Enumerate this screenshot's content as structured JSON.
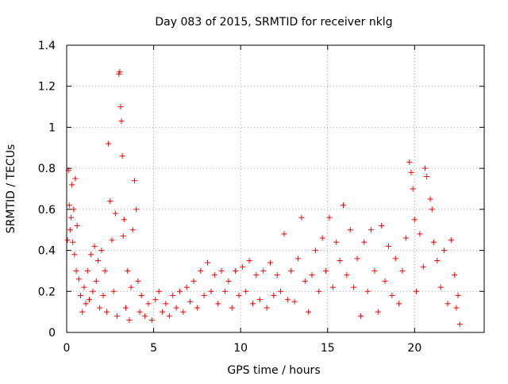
{
  "chart_data": {
    "type": "scatter",
    "title": "Day 083 of 2015, SRMTID for receiver nklg",
    "xlabel": "GPS time / hours",
    "ylabel": "SRMTID / TECUs",
    "xlim": [
      0,
      24
    ],
    "ylim": [
      0,
      1.4
    ],
    "xticks": [
      0,
      5,
      10,
      15,
      20
    ],
    "xtick_labels": [
      "0",
      "5",
      "10",
      "15",
      "20"
    ],
    "yticks": [
      0,
      0.2,
      0.4,
      0.6,
      0.8,
      1.0,
      1.2,
      1.4
    ],
    "ytick_labels": [
      "0",
      "0.2",
      "0.4",
      "0.6",
      "0.8",
      "1",
      "1.2",
      "1.4"
    ],
    "grid": true,
    "marker": "+",
    "color": "#ff0000",
    "series": [
      {
        "name": "SRMTID",
        "points": [
          [
            0.05,
            0.45
          ],
          [
            0.1,
            0.79
          ],
          [
            0.15,
            0.62
          ],
          [
            0.2,
            0.5
          ],
          [
            0.25,
            0.56
          ],
          [
            0.3,
            0.72
          ],
          [
            0.35,
            0.44
          ],
          [
            0.4,
            0.6
          ],
          [
            0.45,
            0.38
          ],
          [
            0.5,
            0.75
          ],
          [
            0.55,
            0.3
          ],
          [
            0.6,
            0.52
          ],
          [
            0.7,
            0.26
          ],
          [
            0.8,
            0.18
          ],
          [
            0.9,
            0.1
          ],
          [
            1.0,
            0.22
          ],
          [
            1.1,
            0.14
          ],
          [
            1.2,
            0.3
          ],
          [
            1.3,
            0.16
          ],
          [
            1.4,
            0.38
          ],
          [
            1.5,
            0.2
          ],
          [
            1.6,
            0.42
          ],
          [
            1.7,
            0.25
          ],
          [
            1.8,
            0.35
          ],
          [
            1.9,
            0.12
          ],
          [
            2.0,
            0.4
          ],
          [
            2.1,
            0.18
          ],
          [
            2.2,
            0.3
          ],
          [
            2.3,
            0.1
          ],
          [
            2.4,
            0.92
          ],
          [
            2.5,
            0.64
          ],
          [
            2.6,
            0.45
          ],
          [
            2.7,
            0.2
          ],
          [
            2.8,
            0.58
          ],
          [
            2.9,
            0.08
          ],
          [
            3.0,
            1.26
          ],
          [
            3.05,
            1.27
          ],
          [
            3.1,
            1.1
          ],
          [
            3.15,
            1.03
          ],
          [
            3.2,
            0.86
          ],
          [
            3.25,
            0.47
          ],
          [
            3.3,
            0.55
          ],
          [
            3.4,
            0.12
          ],
          [
            3.5,
            0.3
          ],
          [
            3.6,
            0.06
          ],
          [
            3.7,
            0.22
          ],
          [
            3.8,
            0.5
          ],
          [
            3.9,
            0.74
          ],
          [
            4.0,
            0.6
          ],
          [
            4.1,
            0.25
          ],
          [
            4.2,
            0.1
          ],
          [
            4.3,
            0.18
          ],
          [
            4.5,
            0.08
          ],
          [
            4.7,
            0.14
          ],
          [
            4.9,
            0.06
          ],
          [
            5.1,
            0.16
          ],
          [
            5.3,
            0.2
          ],
          [
            5.5,
            0.1
          ],
          [
            5.7,
            0.14
          ],
          [
            5.9,
            0.08
          ],
          [
            6.1,
            0.18
          ],
          [
            6.3,
            0.12
          ],
          [
            6.5,
            0.2
          ],
          [
            6.7,
            0.1
          ],
          [
            6.9,
            0.22
          ],
          [
            7.1,
            0.15
          ],
          [
            7.3,
            0.25
          ],
          [
            7.5,
            0.12
          ],
          [
            7.7,
            0.3
          ],
          [
            7.9,
            0.18
          ],
          [
            8.1,
            0.34
          ],
          [
            8.3,
            0.2
          ],
          [
            8.5,
            0.28
          ],
          [
            8.7,
            0.14
          ],
          [
            8.9,
            0.3
          ],
          [
            9.1,
            0.2
          ],
          [
            9.3,
            0.25
          ],
          [
            9.5,
            0.12
          ],
          [
            9.7,
            0.3
          ],
          [
            9.9,
            0.18
          ],
          [
            10.1,
            0.32
          ],
          [
            10.3,
            0.2
          ],
          [
            10.5,
            0.35
          ],
          [
            10.7,
            0.14
          ],
          [
            10.9,
            0.28
          ],
          [
            11.1,
            0.16
          ],
          [
            11.3,
            0.3
          ],
          [
            11.5,
            0.12
          ],
          [
            11.7,
            0.34
          ],
          [
            11.9,
            0.18
          ],
          [
            12.1,
            0.28
          ],
          [
            12.3,
            0.2
          ],
          [
            12.5,
            0.48
          ],
          [
            12.7,
            0.16
          ],
          [
            12.9,
            0.3
          ],
          [
            13.1,
            0.15
          ],
          [
            13.3,
            0.36
          ],
          [
            13.5,
            0.56
          ],
          [
            13.7,
            0.25
          ],
          [
            13.9,
            0.1
          ],
          [
            14.1,
            0.28
          ],
          [
            14.3,
            0.4
          ],
          [
            14.5,
            0.2
          ],
          [
            14.7,
            0.46
          ],
          [
            14.9,
            0.3
          ],
          [
            15.1,
            0.56
          ],
          [
            15.3,
            0.22
          ],
          [
            15.5,
            0.44
          ],
          [
            15.7,
            0.35
          ],
          [
            15.9,
            0.62
          ],
          [
            16.1,
            0.28
          ],
          [
            16.3,
            0.5
          ],
          [
            16.5,
            0.22
          ],
          [
            16.7,
            0.36
          ],
          [
            16.9,
            0.08
          ],
          [
            17.1,
            0.44
          ],
          [
            17.3,
            0.2
          ],
          [
            17.5,
            0.5
          ],
          [
            17.7,
            0.3
          ],
          [
            17.9,
            0.1
          ],
          [
            18.1,
            0.52
          ],
          [
            18.3,
            0.25
          ],
          [
            18.5,
            0.42
          ],
          [
            18.7,
            0.18
          ],
          [
            18.9,
            0.36
          ],
          [
            19.1,
            0.14
          ],
          [
            19.3,
            0.3
          ],
          [
            19.5,
            0.46
          ],
          [
            19.7,
            0.83
          ],
          [
            19.8,
            0.78
          ],
          [
            19.9,
            0.7
          ],
          [
            20.0,
            0.55
          ],
          [
            20.1,
            0.2
          ],
          [
            20.3,
            0.48
          ],
          [
            20.5,
            0.32
          ],
          [
            20.6,
            0.8
          ],
          [
            20.7,
            0.76
          ],
          [
            20.9,
            0.65
          ],
          [
            21.0,
            0.6
          ],
          [
            21.1,
            0.44
          ],
          [
            21.3,
            0.35
          ],
          [
            21.5,
            0.22
          ],
          [
            21.7,
            0.4
          ],
          [
            21.9,
            0.14
          ],
          [
            22.1,
            0.45
          ],
          [
            22.3,
            0.28
          ],
          [
            22.4,
            0.12
          ],
          [
            22.5,
            0.18
          ],
          [
            22.6,
            0.04
          ]
        ]
      }
    ]
  }
}
